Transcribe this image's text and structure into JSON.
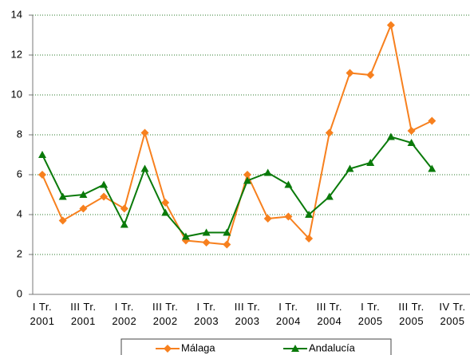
{
  "chart_data": {
    "type": "line",
    "categories": [
      "I Tr.\n2001",
      null,
      "III Tr.\n2001",
      null,
      "I Tr.\n2002",
      null,
      "III Tr.\n2002",
      null,
      "I Tr.\n2003",
      null,
      "III Tr.\n2003",
      null,
      "I Tr.\n2004",
      null,
      "III Tr.\n2004",
      null,
      "I Tr.\n2005",
      null,
      "III Tr.\n2005",
      null,
      "IV Tr.\n2005"
    ],
    "series": [
      {
        "name": "Málaga",
        "color": "#f7801e",
        "marker": "diamond",
        "values": [
          6.0,
          3.7,
          4.3,
          4.9,
          4.3,
          8.1,
          4.6,
          2.7,
          2.6,
          2.5,
          6.0,
          3.8,
          3.9,
          2.8,
          8.1,
          11.1,
          11.0,
          13.5,
          8.2,
          8.7,
          null
        ]
      },
      {
        "name": "Andalucía",
        "color": "#0a7a0a",
        "marker": "triangle",
        "values": [
          7.0,
          4.9,
          5.0,
          5.5,
          3.5,
          6.3,
          4.1,
          2.9,
          3.1,
          3.1,
          5.7,
          6.1,
          5.5,
          4.0,
          4.9,
          6.3,
          6.6,
          7.9,
          7.6,
          6.3,
          null
        ]
      }
    ],
    "ylim": [
      0,
      14
    ],
    "yticks": [
      0,
      2,
      4,
      6,
      8,
      10,
      12,
      14
    ],
    "grid": true,
    "legend": "bottom"
  }
}
